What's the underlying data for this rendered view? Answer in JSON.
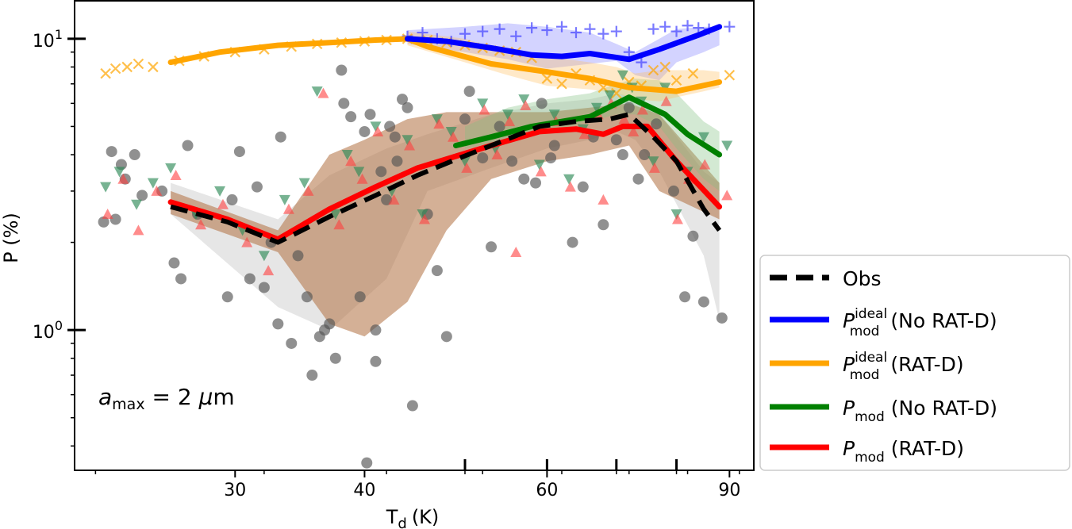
{
  "chart_data": {
    "type": "scatter",
    "xscale": "log",
    "yscale": "log",
    "xlim": [
      21,
      95
    ],
    "ylim": [
      0.33,
      13.5
    ],
    "xlabel": "T",
    "xlabel_sub": "d",
    "xlabel_unit": "(K)",
    "ylabel": "P (%)",
    "xticks": [
      {
        "value": 30,
        "label": "30"
      },
      {
        "value": 40,
        "label": "40"
      },
      {
        "value": 60,
        "label": "60"
      },
      {
        "value": 90,
        "label": "90"
      }
    ],
    "yticks": [
      {
        "value": 1,
        "base": "10",
        "exp": "0"
      },
      {
        "value": 10,
        "base": "10",
        "exp": "1"
      }
    ],
    "annotation": {
      "symbol": "a",
      "sub": "max",
      "rest": " = 2 ",
      "mu": "μ",
      "unit": "m"
    },
    "legend_position": "lower-right-outside",
    "legend": [
      {
        "key": "obs",
        "color": "#000000",
        "dash": true,
        "main": "Obs",
        "sup": "",
        "sub": "",
        "rest": ""
      },
      {
        "key": "ideal_nd",
        "color": "#0000ff",
        "dash": false,
        "main": "P",
        "sup": "ideal",
        "sub": "mod",
        "rest": " (No RAT-D)"
      },
      {
        "key": "ideal_d",
        "color": "#ffa500",
        "dash": false,
        "main": "P",
        "sup": "ideal",
        "sub": "mod",
        "rest": " (RAT-D)"
      },
      {
        "key": "mod_nd",
        "color": "#008000",
        "dash": false,
        "main": "P",
        "sup": "",
        "sub": "mod",
        "rest": " (No RAT-D)"
      },
      {
        "key": "mod_d",
        "color": "#ff0000",
        "dash": false,
        "main": "P",
        "sup": "",
        "sub": "mod",
        "rest": " (RAT-D)"
      }
    ],
    "bands": [
      {
        "name": "Obs band",
        "color": "#c8c8c8",
        "opacity": 0.45,
        "x": [
          26,
          33,
          37,
          42,
          46,
          53,
          60,
          66,
          70,
          73,
          77,
          85,
          88
        ],
        "lo": [
          2.5,
          1.2,
          1.0,
          1.5,
          3.0,
          3.6,
          4.2,
          4.5,
          4.8,
          4.5,
          3.5,
          1.8,
          1.08
        ],
        "hi": [
          3.2,
          2.4,
          3.4,
          4.2,
          4.7,
          5.5,
          6.0,
          6.2,
          6.5,
          6.3,
          5.5,
          3.5,
          3.2
        ]
      },
      {
        "name": "P_mod RAT-D band",
        "color": "#b07040",
        "opacity": 0.55,
        "x": [
          26,
          33,
          37,
          40,
          44,
          48,
          53,
          60,
          66,
          72,
          77,
          88
        ],
        "lo": [
          2.5,
          1.85,
          1.05,
          0.95,
          1.25,
          2.2,
          3.3,
          3.8,
          4.0,
          4.3,
          3.0,
          2.4
        ],
        "hi": [
          3.0,
          2.2,
          4.0,
          4.5,
          5.3,
          5.6,
          5.6,
          5.6,
          5.8,
          6.0,
          5.5,
          3.2
        ]
      },
      {
        "name": "P_mod No RAT-D band",
        "color": "#80c080",
        "opacity": 0.35,
        "x": [
          50,
          55,
          60,
          66,
          70,
          73,
          77,
          80,
          85,
          88
        ],
        "lo": [
          4.2,
          4.5,
          4.8,
          5.2,
          5.5,
          5.5,
          5.0,
          4.2,
          3.3,
          3.0
        ],
        "hi": [
          5.0,
          5.8,
          6.2,
          6.5,
          7.0,
          7.3,
          7.2,
          6.5,
          5.2,
          4.8
        ]
      },
      {
        "name": "P_ideal No RAT-D band",
        "color": "#8080ff",
        "opacity": 0.35,
        "x": [
          44,
          50,
          55,
          60,
          66,
          70,
          73,
          77,
          80,
          85,
          88
        ],
        "lo": [
          9.6,
          9.0,
          8.5,
          7.9,
          8.2,
          8.4,
          7.5,
          7.2,
          8.3,
          9.0,
          9.5
        ],
        "hi": [
          10.7,
          11.0,
          11.3,
          11.0,
          10.5,
          9.6,
          9.0,
          10.0,
          10.8,
          11.0,
          11.0
        ]
      },
      {
        "name": "P_ideal RAT-D band",
        "color": "#ffc060",
        "opacity": 0.35,
        "x": [
          44,
          50,
          55,
          60,
          66,
          70,
          73,
          77,
          80,
          85,
          88
        ],
        "lo": [
          9.5,
          8.3,
          7.5,
          6.9,
          6.7,
          6.5,
          6.2,
          6.1,
          6.3,
          6.6,
          6.8
        ],
        "hi": [
          10.6,
          10.0,
          9.0,
          8.7,
          8.3,
          8.0,
          7.6,
          7.8,
          7.8,
          7.8,
          7.7
        ]
      }
    ],
    "series": [
      {
        "key": "ideal_d",
        "name": "P_mod ideal (RAT-D)",
        "color": "#ffa500",
        "x": [
          26,
          29,
          33,
          37,
          41,
          44,
          46,
          53,
          60,
          66,
          72,
          80,
          88
        ],
        "y": [
          8.3,
          9.0,
          9.5,
          9.7,
          9.9,
          10.0,
          9.4,
          8.2,
          7.7,
          7.3,
          6.8,
          6.6,
          7.1
        ]
      },
      {
        "key": "ideal_nd",
        "name": "P_mod ideal (No RAT-D)",
        "color": "#0000ff",
        "x": [
          44,
          48,
          53,
          58,
          62,
          66,
          72,
          77,
          84,
          88
        ],
        "y": [
          10.0,
          9.8,
          9.3,
          8.8,
          8.7,
          8.9,
          8.5,
          9.2,
          10.3,
          11.0
        ]
      },
      {
        "key": "mod_nd",
        "name": "P_mod (No RAT-D)",
        "color": "#008000",
        "x": [
          49,
          53,
          58,
          62,
          66,
          72,
          78,
          82,
          88
        ],
        "y": [
          4.3,
          4.6,
          5.0,
          5.2,
          5.4,
          6.3,
          5.5,
          4.7,
          4.0
        ]
      },
      {
        "key": "mod_d",
        "name": "P_mod (RAT-D)",
        "color": "#ff0000",
        "x": [
          26,
          29.5,
          33,
          37,
          41,
          45,
          49,
          53,
          59,
          64,
          68,
          71,
          75,
          80,
          88
        ],
        "y": [
          2.75,
          2.4,
          2.05,
          2.6,
          3.1,
          3.6,
          3.95,
          4.3,
          4.8,
          4.9,
          4.7,
          5.0,
          5.0,
          3.8,
          2.65
        ]
      },
      {
        "key": "obs",
        "name": "Obs",
        "color": "#000000",
        "dash": true,
        "x": [
          26,
          29.5,
          33,
          37,
          41,
          45,
          49,
          53,
          59,
          64,
          69,
          72,
          76,
          80,
          85,
          88
        ],
        "y": [
          2.65,
          2.35,
          2.0,
          2.45,
          2.9,
          3.4,
          3.85,
          4.3,
          5.0,
          5.2,
          5.3,
          5.5,
          4.6,
          3.8,
          2.6,
          2.2
        ]
      }
    ],
    "scatter": {
      "obs_gray": {
        "name": "Observed data points",
        "color": "#555555",
        "marker": "circle",
        "x": [
          22.4,
          22.8,
          23.0,
          23.3,
          23.5,
          24.0,
          24.4,
          25.5,
          26.2,
          26.6,
          27.0,
          27.6,
          29.5,
          29.8,
          30.3,
          31.0,
          31.5,
          32.0,
          32.5,
          33.0,
          33.2,
          34.0,
          34.5,
          35.2,
          35.6,
          36.2,
          36.6,
          37.0,
          37.5,
          38.0,
          38.2,
          38.8,
          39.6,
          40.0,
          40.5,
          41.0,
          41.5,
          42.0,
          42.3,
          42.8,
          43.5,
          43.0,
          41.0,
          40.2,
          44.0,
          44.5,
          46.0,
          47.0,
          48.0,
          50.0,
          50.5,
          52.0,
          53.0,
          54.0,
          55.5,
          57.0,
          58.5,
          59.3,
          60.5,
          61.0,
          63.5,
          65.0,
          66.5,
          68.0,
          70.0,
          71.0,
          72.0,
          73.5,
          74.5,
          76.5,
          79.5,
          81.5,
          83.0,
          85.0,
          88.5
        ],
        "y": [
          2.35,
          4.1,
          2.4,
          3.7,
          3.3,
          4.0,
          2.9,
          3.0,
          1.7,
          1.5,
          4.3,
          2.5,
          1.3,
          2.8,
          4.1,
          1.5,
          3.1,
          1.4,
          2.0,
          1.05,
          4.6,
          0.9,
          1.8,
          1.3,
          0.7,
          0.95,
          1.0,
          1.05,
          0.8,
          7.8,
          6.0,
          5.4,
          1.3,
          4.8,
          5.5,
          1.0,
          3.5,
          2.8,
          5.0,
          4.6,
          6.2,
          3.8,
          0.78,
          0.35,
          5.8,
          0.55,
          2.5,
          1.6,
          0.95,
          5.3,
          6.6,
          3.9,
          1.93,
          5.0,
          3.8,
          3.3,
          3.2,
          6.0,
          3.9,
          4.3,
          2.0,
          3.1,
          4.6,
          2.3,
          4.5,
          4.0,
          5.8,
          3.3,
          4.0,
          5.1,
          3.0,
          1.3,
          2.1,
          1.25,
          1.1
        ],
        "opacity": 0.65
      },
      "green_tri": {
        "name": "P_mod No RAT-D points",
        "color": "#2e8b57",
        "marker": "triangle-down",
        "x": [
          22.5,
          23.2,
          24.1,
          25.0,
          26.0,
          27.5,
          29.0,
          30.5,
          32.0,
          33.5,
          35.0,
          36.0,
          37.5,
          38.5,
          39.5,
          41.0,
          42.5,
          44.0,
          45.5,
          47.0,
          48.5,
          50.0,
          52.0,
          53.5,
          55.0,
          57.0,
          59.0,
          61.0,
          63.0,
          65.0,
          67.0,
          69.0,
          71.0,
          72.5,
          74.0,
          76.0,
          78.0,
          80.0,
          82.0,
          85.0,
          89.5
        ],
        "y": [
          3.1,
          3.5,
          2.7,
          3.2,
          3.6,
          2.5,
          3.0,
          2.2,
          1.8,
          2.8,
          3.2,
          6.6,
          2.5,
          4.0,
          3.5,
          5.0,
          3.0,
          4.5,
          2.5,
          5.3,
          4.8,
          3.8,
          6.0,
          4.2,
          5.5,
          6.2,
          3.7,
          5.5,
          3.3,
          4.9,
          5.8,
          6.4,
          7.5,
          6.8,
          6.1,
          3.8,
          6.8,
          2.5,
          3.5,
          4.6,
          4.3
        ],
        "opacity": 0.65
      },
      "red_tri": {
        "name": "P_mod RAT-D points",
        "color": "#ff4040",
        "marker": "triangle-up",
        "x": [
          22.6,
          23.4,
          24.2,
          25.2,
          26.3,
          27.8,
          29.2,
          30.8,
          32.3,
          33.8,
          35.3,
          36.5,
          37.8,
          38.8,
          39.8,
          41.2,
          42.7,
          44.2,
          45.7,
          47.2,
          48.7,
          50.2,
          52.2,
          53.7,
          55.2,
          57.2,
          59.2,
          61.2,
          63.2,
          65.2,
          67.2,
          69.2,
          71.2,
          72.7,
          74.2,
          76.2,
          78.2,
          80.2,
          82.2,
          85.2,
          89.5,
          56.0,
          68.0
        ],
        "y": [
          2.5,
          3.3,
          2.2,
          3.0,
          3.4,
          2.3,
          2.7,
          2.0,
          1.6,
          2.6,
          3.0,
          6.5,
          2.3,
          3.8,
          3.3,
          4.8,
          2.8,
          4.3,
          2.4,
          5.1,
          4.6,
          3.6,
          5.7,
          4.0,
          5.2,
          5.9,
          3.5,
          5.2,
          3.1,
          4.7,
          5.5,
          6.0,
          5.3,
          4.8,
          5.7,
          3.6,
          6.1,
          2.4,
          3.3,
          3.7,
          2.9,
          1.85,
          2.8
        ],
        "opacity": 0.6
      },
      "blue_plus": {
        "name": "P_ideal No RAT-D points",
        "color": "#4040ff",
        "marker": "plus",
        "x": [
          44,
          45.5,
          47,
          48.5,
          50,
          52,
          54,
          56,
          58,
          60,
          62,
          64,
          66,
          68,
          70,
          72,
          74,
          76,
          78,
          80,
          82,
          84,
          86,
          90
        ],
        "y": [
          10.2,
          10.5,
          10.0,
          9.8,
          10.4,
          10.6,
          10.8,
          10.2,
          10.9,
          10.7,
          11.0,
          10.5,
          10.8,
          10.4,
          10.6,
          9.0,
          8.3,
          10.8,
          11.0,
          10.6,
          11.1,
          10.9,
          10.8,
          11.0
        ],
        "opacity": 0.7
      },
      "orange_x": {
        "name": "P_ideal RAT-D points",
        "color": "#ffa500",
        "marker": "cross",
        "x": [
          22.5,
          23.0,
          23.6,
          24.2,
          25.0,
          26.5,
          28.0,
          30.0,
          32.0,
          34.0,
          36.0,
          38.0,
          40.0,
          42.0,
          44.0,
          46.0,
          48.0,
          50.0,
          52.0,
          54.0,
          56.0,
          58.0,
          60.0,
          62.0,
          64.0,
          66.0,
          68.0,
          70.0,
          72.0,
          74.0,
          76.0,
          78.0,
          80.0,
          83.0,
          90.0
        ],
        "y": [
          7.6,
          7.9,
          8.0,
          8.2,
          8.0,
          8.4,
          8.7,
          9.0,
          9.2,
          9.4,
          9.6,
          9.7,
          9.8,
          9.9,
          10.0,
          9.9,
          9.7,
          9.5,
          9.3,
          9.1,
          9.0,
          8.6,
          7.3,
          7.0,
          7.6,
          7.2,
          6.8,
          6.5,
          7.1,
          6.9,
          7.8,
          8.0,
          7.2,
          7.6,
          7.5
        ],
        "opacity": 0.7
      }
    }
  }
}
